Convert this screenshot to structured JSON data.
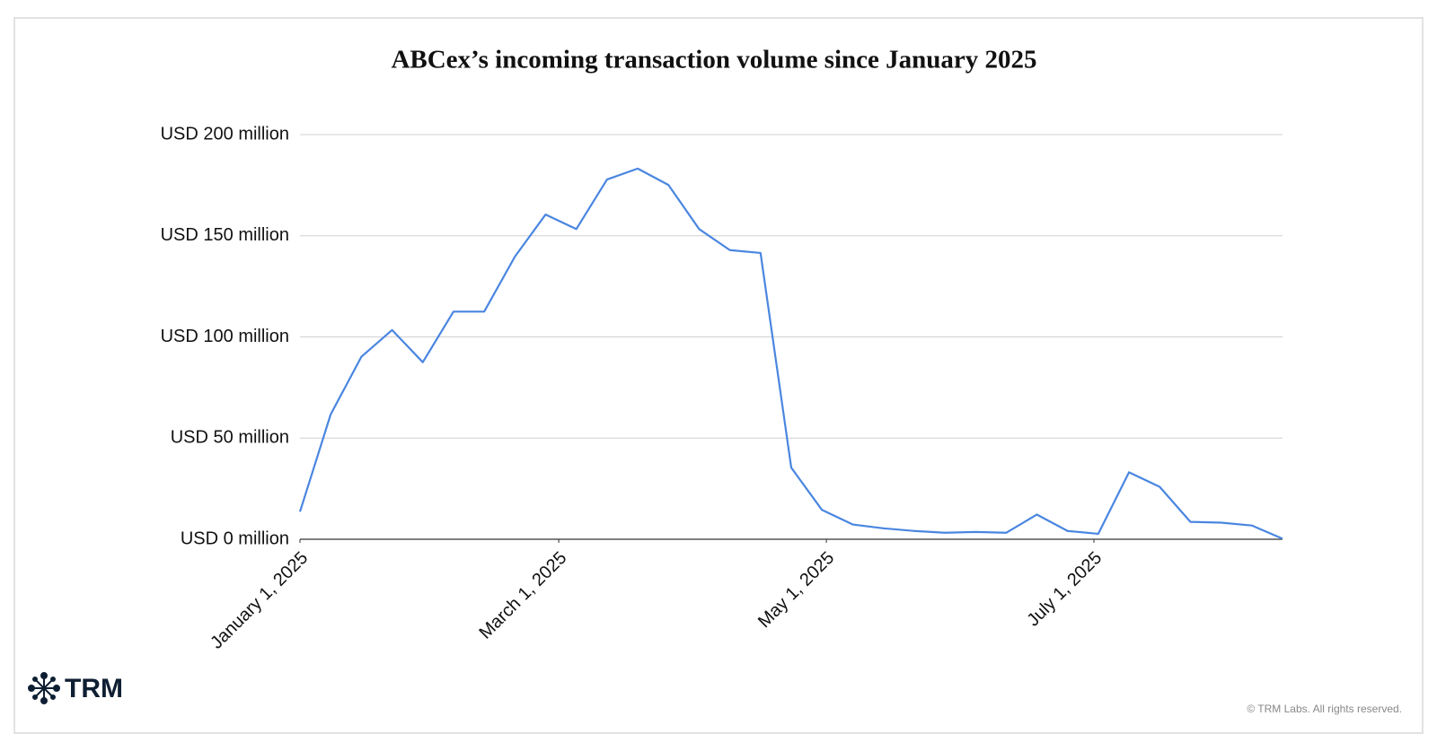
{
  "chart_data": {
    "type": "line",
    "title": "ABCex’s incoming transaction volume since January 2025",
    "x": [
      "2025-01-01",
      "2025-01-08",
      "2025-01-15",
      "2025-01-22",
      "2025-01-29",
      "2025-02-05",
      "2025-02-12",
      "2025-02-19",
      "2025-02-26",
      "2025-03-05",
      "2025-03-12",
      "2025-03-19",
      "2025-03-26",
      "2025-04-02",
      "2025-04-09",
      "2025-04-16",
      "2025-04-23",
      "2025-04-30",
      "2025-05-07",
      "2025-05-14",
      "2025-05-21",
      "2025-05-28",
      "2025-06-04",
      "2025-06-11",
      "2025-06-18",
      "2025-06-25",
      "2025-07-02",
      "2025-07-09",
      "2025-07-16",
      "2025-07-23",
      "2025-07-30",
      "2025-08-06",
      "2025-08-13"
    ],
    "series": [
      {
        "color": "#4a86e0",
        "values": [
          13.6,
          61.7,
          90.2,
          103.4,
          87.5,
          112.5,
          112.5,
          139.7,
          160.5,
          153.3,
          177.8,
          183.2,
          175.1,
          153.3,
          142.9,
          141.5,
          35.4,
          14.5,
          7.3,
          5.4,
          4.1,
          3.2,
          3.6,
          3.2,
          12.2,
          4.1,
          2.7,
          33.1,
          25.9,
          8.6,
          8.2,
          6.8,
          0.3
        ]
      }
    ],
    "xlim": [
      "2025-01-01",
      "2025-08-13"
    ],
    "xticks": [
      {
        "value": "2025-01-01",
        "label": "January 1, 2025"
      },
      {
        "value": "2025-03-01",
        "label": "March 1, 2025"
      },
      {
        "value": "2025-05-01",
        "label": "May 1, 2025"
      },
      {
        "value": "2025-07-01",
        "label": "July 1, 2025"
      }
    ],
    "ylim": [
      0,
      200
    ],
    "yticks": [
      {
        "value": 0,
        "label": "USD 0 million"
      },
      {
        "value": 50,
        "label": "USD 50 million"
      },
      {
        "value": 100,
        "label": "USD 100 million"
      },
      {
        "value": 150,
        "label": "USD 150 million"
      },
      {
        "value": 200,
        "label": "USD 200 million"
      }
    ],
    "grid": true
  },
  "branding": {
    "logo": "TRM",
    "copyright": "© TRM Labs. All rights reserved."
  }
}
